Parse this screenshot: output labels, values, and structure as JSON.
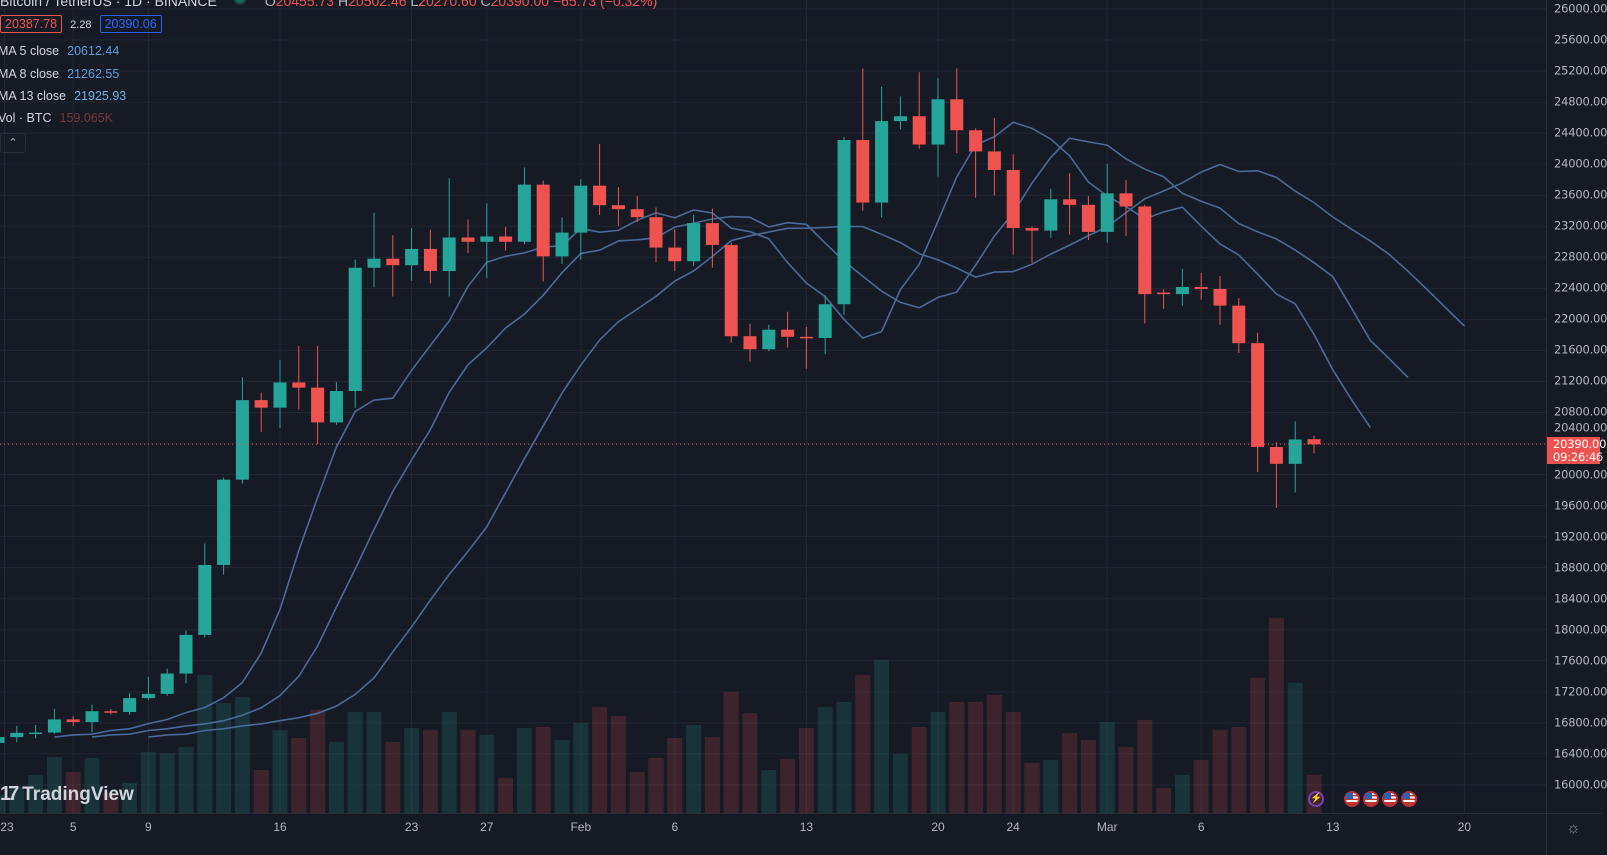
{
  "header": {
    "symbol": "Bitcoin / TetherUS · 1D · BINANCE",
    "o_label": "O",
    "o": "20455.73",
    "h_label": "H",
    "h": "20502.46",
    "l_label": "L",
    "l": "20270.60",
    "c_label": "C",
    "c": "20390.00",
    "change": "−65.73 (−0.32%)"
  },
  "quote": {
    "bid": "20387.78",
    "spread": "2.28",
    "ask": "20390.06"
  },
  "legend": [
    {
      "name": "MA 5 close",
      "value": "20612.44"
    },
    {
      "name": "MA 8 close",
      "value": "21262.55"
    },
    {
      "name": "MA 13 close",
      "value": "21925.93"
    },
    {
      "name": "Vol · BTC",
      "value": "159.065K"
    }
  ],
  "collapse_icon": "chevron-up-icon",
  "current_price": {
    "price": "20390.00",
    "countdown": "09:26:46",
    "value": 20390
  },
  "brand": "TradingView",
  "colors": {
    "up": "#26a69a",
    "down": "#ef5350",
    "ma": "#4a6a9a",
    "bg": "#161a25",
    "grid": "#232733"
  },
  "chart_data": {
    "type": "candlestick",
    "title": "Bitcoin / TetherUS · 1D · BINANCE",
    "ylim": [
      15700,
      26100
    ],
    "grid": true,
    "price_ticks": [
      "26000.00",
      "25600.00",
      "25200.00",
      "24800.00",
      "24400.00",
      "24000.00",
      "23600.00",
      "23200.00",
      "22800.00",
      "22400.00",
      "22000.00",
      "21600.00",
      "21200.00",
      "20800.00",
      "20400.00",
      "20000.00",
      "19600.00",
      "19200.00",
      "18800.00",
      "18400.00",
      "18000.00",
      "17600.00",
      "17200.00",
      "16800.00",
      "16400.00",
      "16000.00"
    ],
    "time_ticks": [
      {
        "label": "23",
        "bar": 0.35
      },
      {
        "label": "5",
        "bar": 4
      },
      {
        "label": "9",
        "bar": 8
      },
      {
        "label": "16",
        "bar": 15
      },
      {
        "label": "23",
        "bar": 22
      },
      {
        "label": "27",
        "bar": 26
      },
      {
        "label": "Feb",
        "bar": 31
      },
      {
        "label": "6",
        "bar": 36
      },
      {
        "label": "13",
        "bar": 43
      },
      {
        "label": "20",
        "bar": 50
      },
      {
        "label": "24",
        "bar": 54
      },
      {
        "label": "Mar",
        "bar": 59
      },
      {
        "label": "6",
        "bar": 64
      },
      {
        "label": "13",
        "bar": 71
      },
      {
        "label": "20",
        "bar": 78
      }
    ],
    "ohlcv_fields": [
      "open",
      "high",
      "low",
      "close",
      "volume_k"
    ],
    "candles": [
      [
        16542,
        16630,
        16500,
        16617,
        75
      ],
      [
        16617,
        16760,
        16550,
        16672,
        109
      ],
      [
        16672,
        16775,
        16600,
        16675,
        159
      ],
      [
        16675,
        16980,
        16660,
        16845,
        235
      ],
      [
        16845,
        16887,
        16760,
        16811,
        172
      ],
      [
        16811,
        17035,
        16676,
        16950,
        230
      ],
      [
        16950,
        16980,
        16910,
        16940,
        84
      ],
      [
        16940,
        17183,
        16905,
        17119,
        126
      ],
      [
        17119,
        17393,
        17100,
        17174,
        256
      ],
      [
        17174,
        17499,
        17150,
        17436,
        251
      ],
      [
        17436,
        17990,
        17309,
        17934,
        276
      ],
      [
        17934,
        19111,
        17900,
        18835,
        578
      ],
      [
        18835,
        19960,
        18710,
        19934,
        461
      ],
      [
        19934,
        21255,
        19883,
        20959,
        486
      ],
      [
        20959,
        21056,
        20550,
        20862,
        180
      ],
      [
        20862,
        21474,
        20601,
        21187,
        348
      ],
      [
        21187,
        21656,
        20841,
        21120,
        314
      ],
      [
        21120,
        21656,
        20390,
        20672,
        432
      ],
      [
        20672,
        21191,
        20640,
        21077,
        297
      ],
      [
        21077,
        22770,
        20860,
        22665,
        423
      ],
      [
        22665,
        23370,
        22413,
        22782,
        423
      ],
      [
        22782,
        23085,
        22295,
        22698,
        297
      ],
      [
        22698,
        23177,
        22497,
        22908,
        356
      ],
      [
        22908,
        23156,
        22463,
        22623,
        348
      ],
      [
        22623,
        23820,
        22295,
        23055,
        423
      ],
      [
        23055,
        23286,
        22854,
        23000,
        348
      ],
      [
        23000,
        23496,
        22530,
        23068,
        327
      ],
      [
        23068,
        23190,
        22883,
        23000,
        147
      ],
      [
        23000,
        23958,
        22967,
        23736,
        356
      ],
      [
        23736,
        23790,
        22488,
        22812,
        360
      ],
      [
        22812,
        23316,
        22715,
        23118,
        306
      ],
      [
        23118,
        23807,
        22770,
        23723,
        377
      ],
      [
        23723,
        24261,
        23345,
        23471,
        444
      ],
      [
        23471,
        23706,
        23202,
        23420,
        406
      ],
      [
        23420,
        23589,
        23253,
        23316,
        172
      ],
      [
        23316,
        23442,
        22740,
        22925,
        230
      ],
      [
        22925,
        23160,
        22623,
        22749,
        314
      ],
      [
        22749,
        23345,
        22690,
        23240,
        369
      ],
      [
        23240,
        23429,
        22665,
        22959,
        318
      ],
      [
        22959,
        22990,
        21699,
        21783,
        507
      ],
      [
        21783,
        21943,
        21455,
        21615,
        419
      ],
      [
        21615,
        21930,
        21590,
        21867,
        180
      ],
      [
        21867,
        22098,
        21636,
        21775,
        226
      ],
      [
        21775,
        21901,
        21363,
        21760,
        356
      ],
      [
        21760,
        22308,
        21552,
        22195,
        444
      ],
      [
        22195,
        24350,
        22056,
        24311,
        465
      ],
      [
        24311,
        25235,
        23400,
        23505,
        578
      ],
      [
        23505,
        24996,
        23316,
        24555,
        641
      ],
      [
        24555,
        24870,
        24450,
        24618,
        247
      ],
      [
        24618,
        25185,
        24198,
        24253,
        360
      ],
      [
        24253,
        25109,
        23841,
        24836,
        423
      ],
      [
        24836,
        25235,
        24143,
        24437,
        465
      ],
      [
        24437,
        24463,
        23568,
        24164,
        465
      ],
      [
        24164,
        24597,
        23597,
        23925,
        494
      ],
      [
        23925,
        24127,
        22833,
        23177,
        423
      ],
      [
        23177,
        23200,
        22728,
        23144,
        210
      ],
      [
        23144,
        23681,
        23051,
        23547,
        222
      ],
      [
        23547,
        23883,
        23093,
        23476,
        335
      ],
      [
        23476,
        23589,
        23022,
        23127,
        306
      ],
      [
        23127,
        24001,
        22990,
        23624,
        381
      ],
      [
        23624,
        23795,
        23076,
        23455,
        276
      ],
      [
        23455,
        23480,
        21946,
        22325,
        390
      ],
      [
        22345,
        22388,
        22135,
        22325,
        105
      ],
      [
        22325,
        22650,
        22177,
        22417,
        159
      ],
      [
        22417,
        22600,
        22253,
        22392,
        222
      ],
      [
        22392,
        22558,
        21930,
        22177,
        348
      ],
      [
        22177,
        22274,
        21566,
        21693,
        360
      ],
      [
        21693,
        21828,
        20032,
        20355,
        566
      ],
      [
        20355,
        20420,
        19570,
        20138,
        817
      ],
      [
        20138,
        20684,
        19769,
        20452,
        545
      ],
      [
        20455.73,
        20502.46,
        20270.6,
        20390.0,
        159.065
      ]
    ],
    "moving_averages": [
      {
        "name": "MA 5 close",
        "length": 5,
        "offset_bars": 3
      },
      {
        "name": "MA 8 close",
        "length": 8,
        "offset_bars": 5
      },
      {
        "name": "MA 13 close",
        "length": 13,
        "offset_bars": 8
      }
    ]
  },
  "events": {
    "lightning_icon": "lightning-icon",
    "flags": [
      "us-flag-icon",
      "us-flag-icon",
      "us-flag-icon",
      "us-flag-icon"
    ]
  },
  "settings_icon": "gear-icon"
}
